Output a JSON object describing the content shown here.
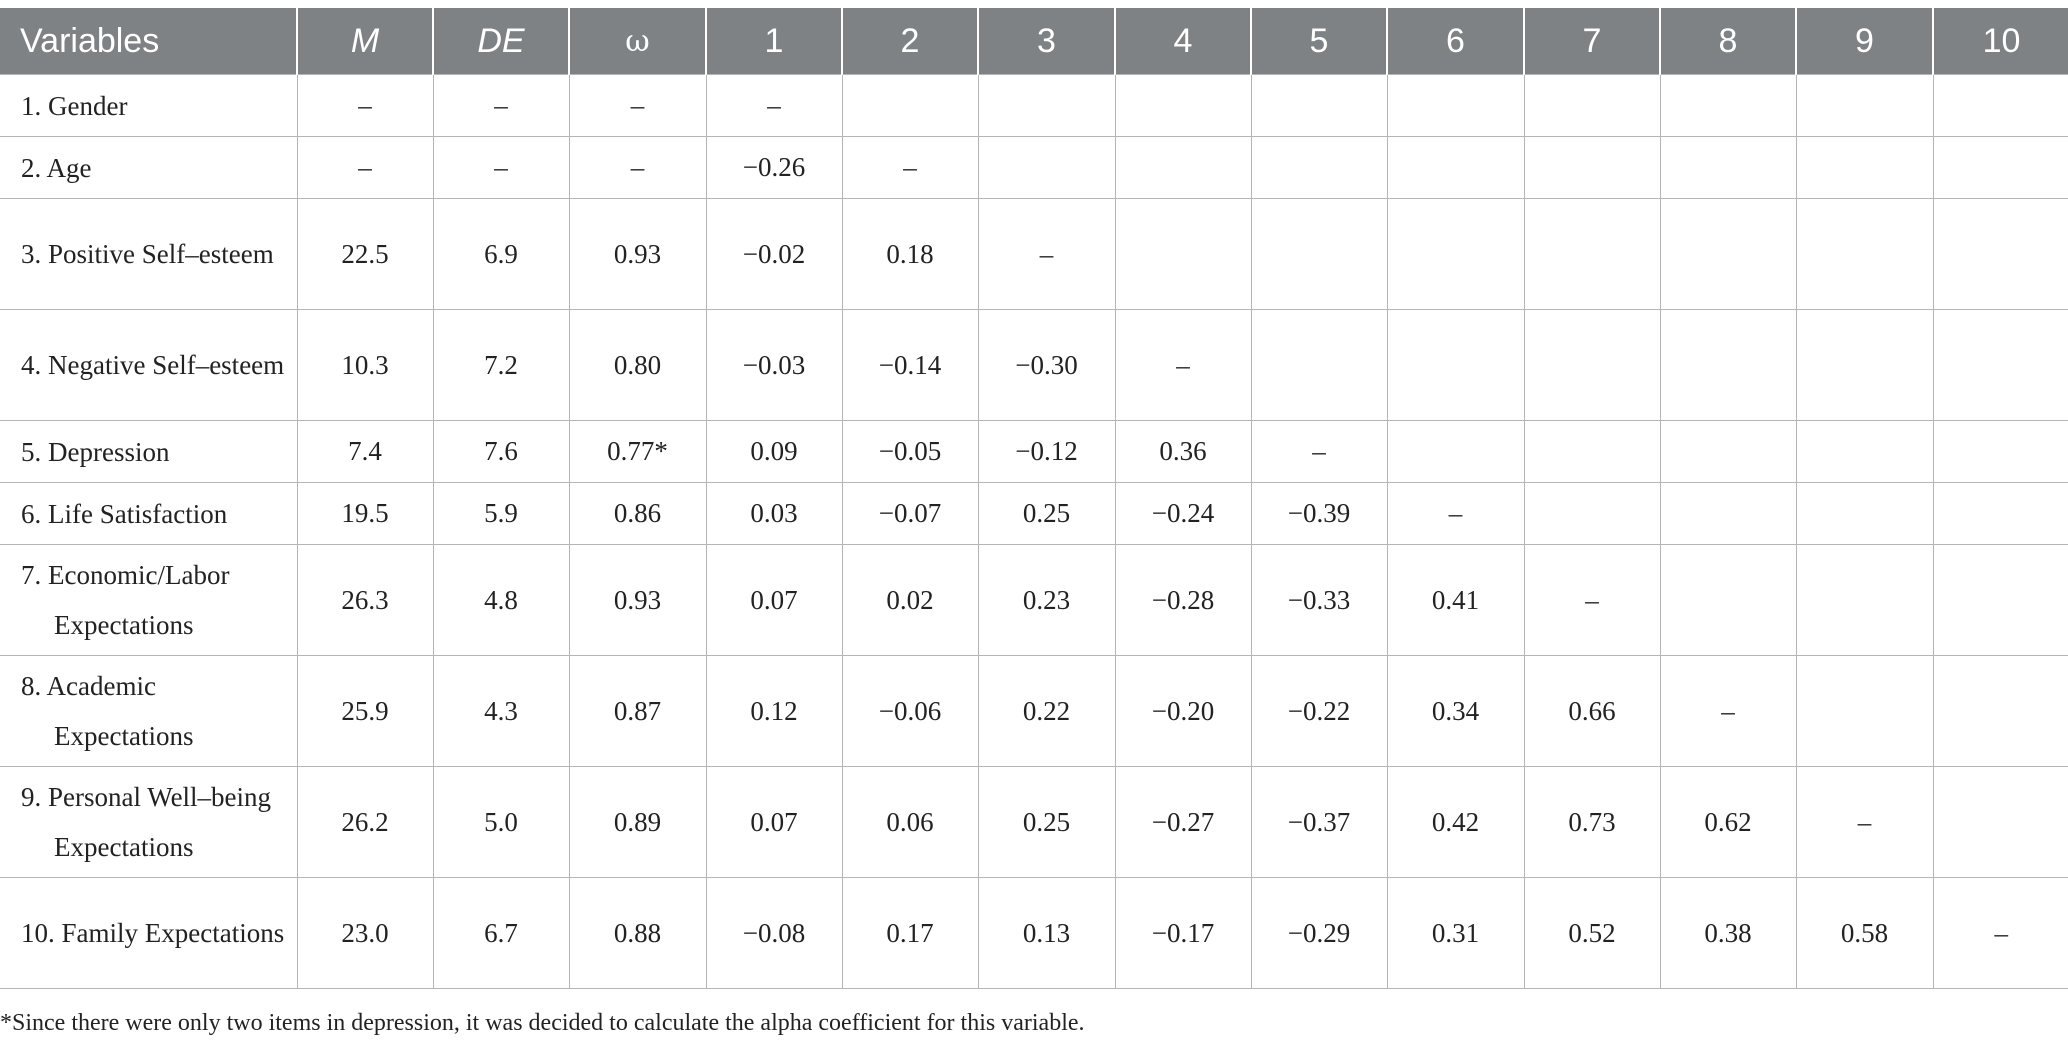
{
  "headers": [
    "Variables",
    "M",
    "DE",
    "ω",
    "1",
    "2",
    "3",
    "4",
    "5",
    "6",
    "7",
    "8",
    "9",
    "10"
  ],
  "rows": [
    {
      "label": "1.  Gender",
      "cells": [
        "–",
        "–",
        "–",
        "–",
        "",
        "",
        "",
        "",
        "",
        "",
        "",
        "",
        ""
      ]
    },
    {
      "label": "2.  Age",
      "cells": [
        "–",
        "–",
        "–",
        "−0.26",
        "–",
        "",
        "",
        "",
        "",
        "",
        "",
        "",
        ""
      ]
    },
    {
      "label": "3.  Positive Self–esteem",
      "cells": [
        "22.5",
        "6.9",
        "0.93",
        "−0.02",
        "0.18",
        "–",
        "",
        "",
        "",
        "",
        "",
        "",
        ""
      ]
    },
    {
      "label": "4.  Negative Self–esteem",
      "cells": [
        "10.3",
        "7.2",
        "0.80",
        "−0.03",
        "−0.14",
        "−0.30",
        "–",
        "",
        "",
        "",
        "",
        "",
        ""
      ]
    },
    {
      "label": "5.  Depression",
      "cells": [
        "7.4",
        "7.6",
        "0.77*",
        "0.09",
        "−0.05",
        "−0.12",
        "0.36",
        "–",
        "",
        "",
        "",
        "",
        ""
      ]
    },
    {
      "label": "6.  Life Satisfaction",
      "cells": [
        "19.5",
        "5.9",
        "0.86",
        "0.03",
        "−0.07",
        "0.25",
        "−0.24",
        "−0.39",
        "–",
        "",
        "",
        "",
        ""
      ]
    },
    {
      "label": "7.  Economic/Labor Expectations",
      "cells": [
        "26.3",
        "4.8",
        "0.93",
        "0.07",
        "0.02",
        "0.23",
        "−0.28",
        "−0.33",
        "0.41",
        "–",
        "",
        "",
        ""
      ]
    },
    {
      "label": "8.  Academic Expectations",
      "cells": [
        "25.9",
        "4.3",
        "0.87",
        "0.12",
        "−0.06",
        "0.22",
        "−0.20",
        "−0.22",
        "0.34",
        "0.66",
        "–",
        "",
        ""
      ]
    },
    {
      "label": "9.  Personal Well–being Expectations",
      "cells": [
        "26.2",
        "5.0",
        "0.89",
        "0.07",
        "0.06",
        "0.25",
        "−0.27",
        "−0.37",
        "0.42",
        "0.73",
        "0.62",
        "–",
        ""
      ]
    },
    {
      "label": "10.  Family Expectations",
      "cells": [
        "23.0",
        "6.7",
        "0.88",
        "−0.08",
        "0.17",
        "0.13",
        "−0.17",
        "−0.29",
        "0.31",
        "0.52",
        "0.38",
        "0.58",
        "–"
      ]
    }
  ],
  "footnote": "*Since there were only two items in depression, it was decided to calculate the alpha coefficient for this variable."
}
